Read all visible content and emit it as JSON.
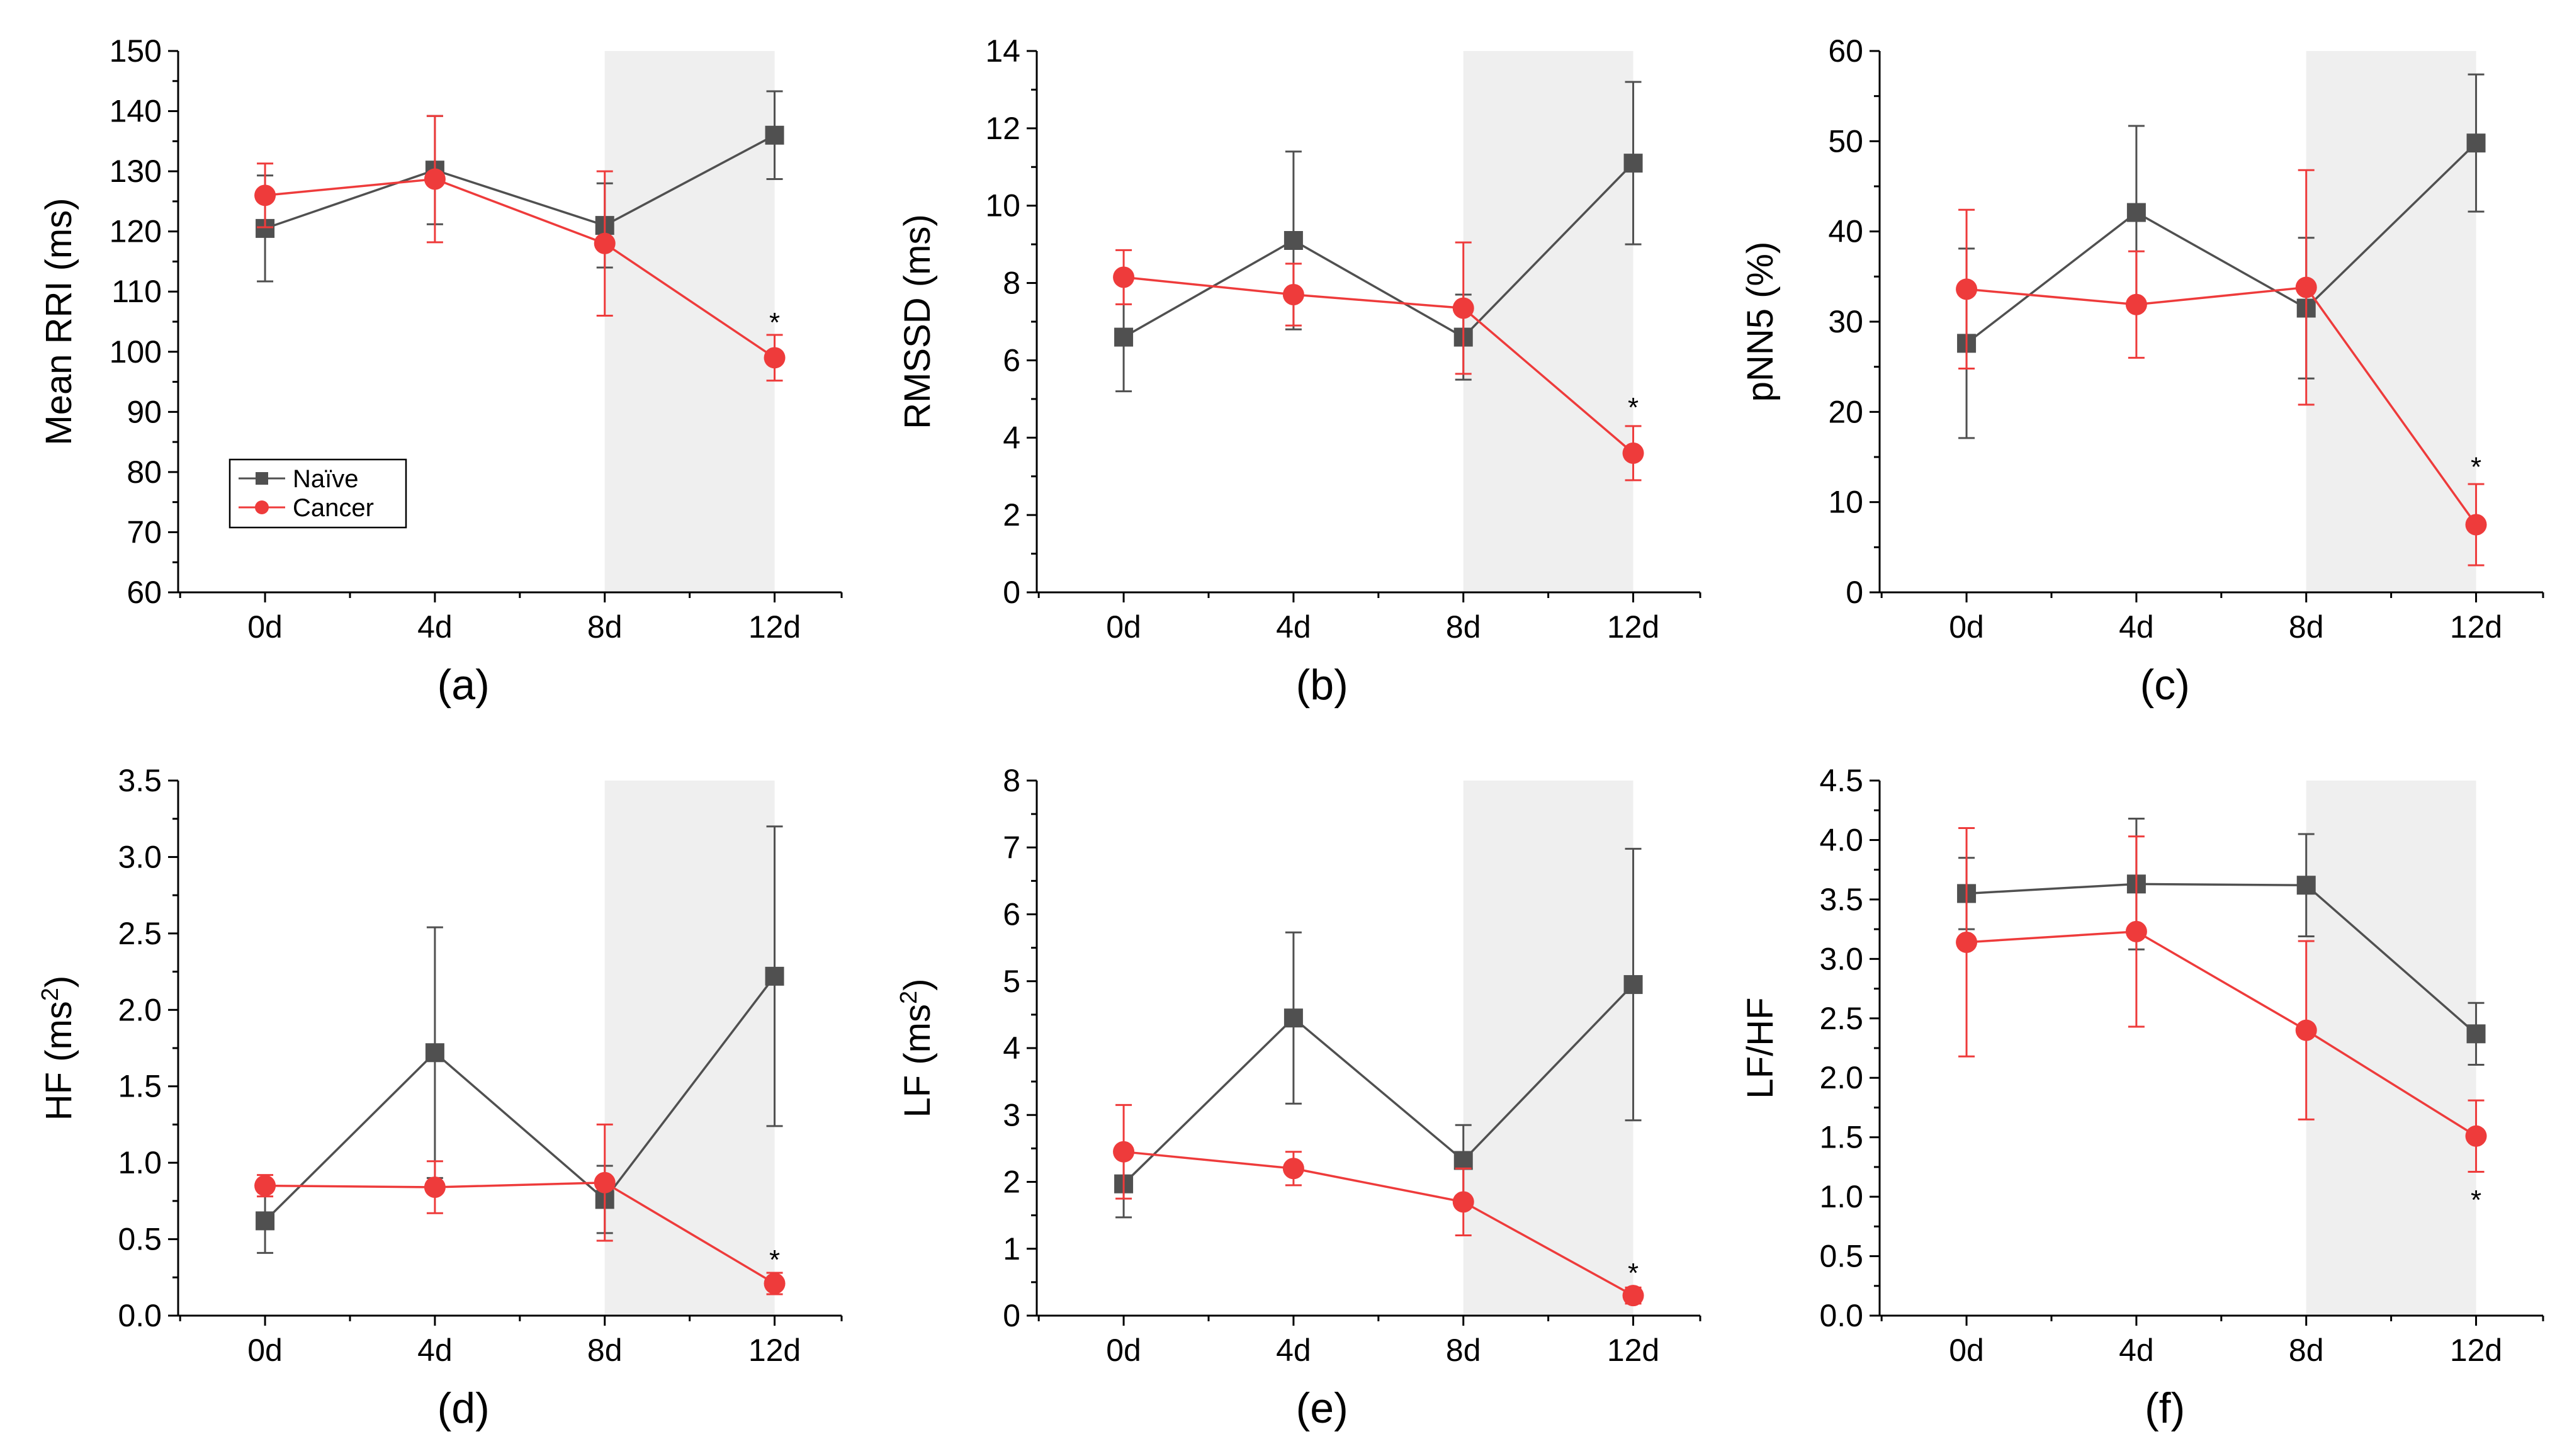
{
  "figure": {
    "series_names": [
      "Naïve",
      "Cancer"
    ],
    "colors": {
      "naive": "#505050",
      "cancer": "#ee3b3b",
      "shade": "#efefef",
      "axis": "#000000"
    }
  },
  "chart_data": [
    {
      "type": "line",
      "panel_label": "(a)",
      "ylabel": "Mean RRI (ms)",
      "ylabel_sup": "",
      "categories": [
        "0d",
        "4d",
        "8d",
        "12d"
      ],
      "ylim": [
        60,
        150
      ],
      "yticks": [
        60,
        70,
        80,
        90,
        100,
        110,
        120,
        130,
        140,
        150
      ],
      "ytick_labels": [
        "60",
        "70",
        "80",
        "90",
        "100",
        "110",
        "120",
        "130",
        "140",
        "150"
      ],
      "shaded_categories": [
        "8d",
        "12d"
      ],
      "legend": true,
      "series": [
        {
          "name": "Naïve",
          "marker": "square",
          "values": [
            120.5,
            130.2,
            121.0,
            136.0
          ],
          "errors": [
            8.8,
            9.0,
            7.0,
            7.3
          ]
        },
        {
          "name": "Cancer",
          "marker": "circle",
          "values": [
            126.0,
            128.7,
            118.0,
            99.0
          ],
          "errors": [
            5.3,
            10.5,
            12.0,
            3.8
          ]
        }
      ],
      "annotations": [
        {
          "text": "*",
          "category": "12d",
          "y": 105
        }
      ]
    },
    {
      "type": "line",
      "panel_label": "(b)",
      "ylabel": "RMSSD (ms)",
      "ylabel_sup": "",
      "categories": [
        "0d",
        "4d",
        "8d",
        "12d"
      ],
      "ylim": [
        0,
        14
      ],
      "yticks": [
        0,
        2,
        4,
        6,
        8,
        10,
        12,
        14
      ],
      "ytick_labels": [
        "0",
        "2",
        "4",
        "6",
        "8",
        "10",
        "12",
        "14"
      ],
      "shaded_categories": [
        "8d",
        "12d"
      ],
      "legend": false,
      "series": [
        {
          "name": "Naïve",
          "marker": "square",
          "values": [
            6.6,
            9.1,
            6.6,
            11.1
          ],
          "errors": [
            1.4,
            2.3,
            1.1,
            2.1
          ]
        },
        {
          "name": "Cancer",
          "marker": "circle",
          "values": [
            8.15,
            7.7,
            7.35,
            3.6
          ],
          "errors": [
            0.7,
            0.8,
            1.7,
            0.7
          ]
        }
      ],
      "annotations": [
        {
          "text": "*",
          "category": "12d",
          "y": 4.8
        }
      ]
    },
    {
      "type": "line",
      "panel_label": "(c)",
      "ylabel": "pNN5 (%)",
      "ylabel_sup": "",
      "categories": [
        "0d",
        "4d",
        "8d",
        "12d"
      ],
      "ylim": [
        0,
        60
      ],
      "yticks": [
        0,
        10,
        20,
        30,
        40,
        50,
        60
      ],
      "ytick_labels": [
        "0",
        "10",
        "20",
        "30",
        "40",
        "50",
        "60"
      ],
      "shaded_categories": [
        "8d",
        "12d"
      ],
      "legend": false,
      "series": [
        {
          "name": "Naïve",
          "marker": "square",
          "values": [
            27.6,
            42.1,
            31.5,
            49.8
          ],
          "errors": [
            10.5,
            9.6,
            7.8,
            7.6
          ]
        },
        {
          "name": "Cancer",
          "marker": "circle",
          "values": [
            33.6,
            31.9,
            33.8,
            7.5
          ],
          "errors": [
            8.8,
            5.9,
            13.0,
            4.5
          ]
        }
      ],
      "annotations": [
        {
          "text": "*",
          "category": "12d",
          "y": 14
        }
      ]
    },
    {
      "type": "line",
      "panel_label": "(d)",
      "ylabel": "HF (ms",
      "ylabel_sup": "2",
      "ylabel_end": ")",
      "categories": [
        "0d",
        "4d",
        "8d",
        "12d"
      ],
      "ylim": [
        0.0,
        3.5
      ],
      "yticks": [
        0.0,
        0.5,
        1.0,
        1.5,
        2.0,
        2.5,
        3.0,
        3.5
      ],
      "ytick_labels": [
        "0.0",
        "0.5",
        "1.0",
        "1.5",
        "2.0",
        "2.5",
        "3.0",
        "3.5"
      ],
      "shaded_categories": [
        "8d",
        "12d"
      ],
      "legend": false,
      "series": [
        {
          "name": "Naïve",
          "marker": "square",
          "values": [
            0.62,
            1.72,
            0.76,
            2.22
          ],
          "errors": [
            0.21,
            0.82,
            0.22,
            0.98
          ]
        },
        {
          "name": "Cancer",
          "marker": "circle",
          "values": [
            0.85,
            0.84,
            0.87,
            0.21
          ],
          "errors": [
            0.07,
            0.17,
            0.38,
            0.07
          ]
        }
      ],
      "annotations": [
        {
          "text": "*",
          "category": "12d",
          "y": 0.37
        }
      ]
    },
    {
      "type": "line",
      "panel_label": "(e)",
      "ylabel": "LF (ms",
      "ylabel_sup": "2",
      "ylabel_end": ")",
      "categories": [
        "0d",
        "4d",
        "8d",
        "12d"
      ],
      "ylim": [
        0,
        8
      ],
      "yticks": [
        0,
        1,
        2,
        3,
        4,
        5,
        6,
        7,
        8
      ],
      "ytick_labels": [
        "0",
        "1",
        "2",
        "3",
        "4",
        "5",
        "6",
        "7",
        "8"
      ],
      "shaded_categories": [
        "8d",
        "12d"
      ],
      "legend": false,
      "series": [
        {
          "name": "Naïve",
          "marker": "square",
          "values": [
            1.97,
            4.45,
            2.32,
            4.95
          ],
          "errors": [
            0.5,
            1.28,
            0.53,
            2.03
          ]
        },
        {
          "name": "Cancer",
          "marker": "circle",
          "values": [
            2.45,
            2.2,
            1.7,
            0.3
          ],
          "errors": [
            0.7,
            0.25,
            0.5,
            0.12
          ]
        }
      ],
      "annotations": [
        {
          "text": "*",
          "category": "12d",
          "y": 0.65
        }
      ]
    },
    {
      "type": "line",
      "panel_label": "(f)",
      "ylabel": "LF/HF",
      "ylabel_sup": "",
      "categories": [
        "0d",
        "4d",
        "8d",
        "12d"
      ],
      "ylim": [
        0.0,
        4.5
      ],
      "yticks": [
        0.0,
        0.5,
        1.0,
        1.5,
        2.0,
        2.5,
        3.0,
        3.5,
        4.0,
        4.5
      ],
      "ytick_labels": [
        "0.0",
        "0.5",
        "1.0",
        "1.5",
        "2.0",
        "2.5",
        "3.0",
        "3.5",
        "4.0",
        "4.5"
      ],
      "shaded_categories": [
        "8d",
        "12d"
      ],
      "legend": false,
      "series": [
        {
          "name": "Naïve",
          "marker": "square",
          "values": [
            3.55,
            3.63,
            3.62,
            2.37
          ],
          "errors": [
            0.3,
            0.55,
            0.43,
            0.26
          ]
        },
        {
          "name": "Cancer",
          "marker": "circle",
          "values": [
            3.14,
            3.23,
            2.4,
            1.51
          ],
          "errors": [
            0.96,
            0.8,
            0.75,
            0.3
          ]
        }
      ],
      "annotations": [
        {
          "text": "*",
          "category": "12d",
          "y": 0.98
        }
      ]
    }
  ]
}
